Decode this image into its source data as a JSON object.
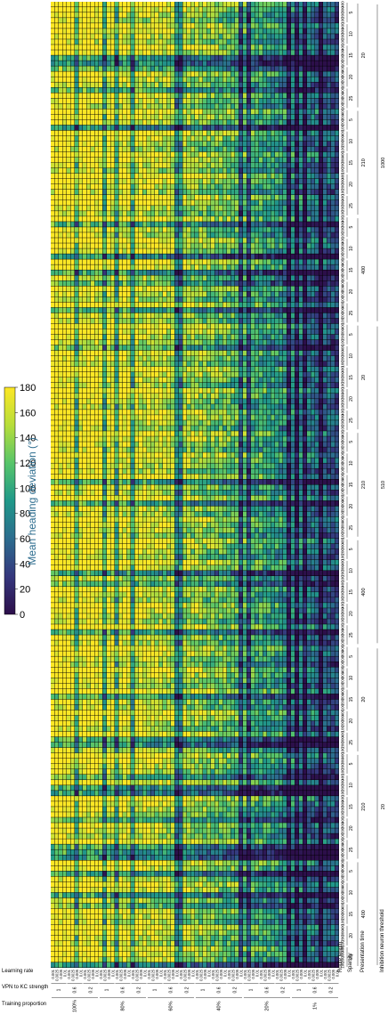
{
  "chart_data": {
    "type": "heatmap",
    "title": "",
    "colorbar": {
      "label": "Mean heading deviation (°)",
      "ticks": [
        0,
        20,
        40,
        60,
        80,
        100,
        120,
        140,
        160,
        180
      ],
      "range": [
        0,
        180
      ],
      "colors": [
        "#2c0f4a",
        "#35377d",
        "#2c6c8e",
        "#20998a",
        "#57c56a",
        "#b7de3b",
        "#fde725"
      ]
    },
    "x_axis_levels": [
      {
        "label": "Learning rate",
        "ticks": [
          "0.001",
          "0.0025",
          "0.005",
          "0.01"
        ]
      },
      {
        "label": "VPN to KC strength",
        "ticks": [
          "1",
          "0.6",
          "0.2"
        ]
      },
      {
        "label": "Training proportion",
        "ticks": [
          "100%",
          "80%",
          "60%",
          "40%",
          "20%",
          "1%"
        ]
      }
    ],
    "y_axis_levels": [
      {
        "label": "Route length",
        "ticks": [
          "400",
          "300",
          "200",
          "100"
        ]
      },
      {
        "label": "Sparsity",
        "ticks": [
          "5",
          "10",
          "15",
          "20",
          "25"
        ]
      },
      {
        "label": "Presentation time",
        "ticks": [
          "20",
          "210",
          "400"
        ]
      },
      {
        "label": "Inhibition neuron threshold",
        "ticks": [
          "1000",
          "510",
          "20"
        ]
      }
    ],
    "n_columns": 72,
    "n_rows": 180,
    "rows_per_block": 60
  }
}
